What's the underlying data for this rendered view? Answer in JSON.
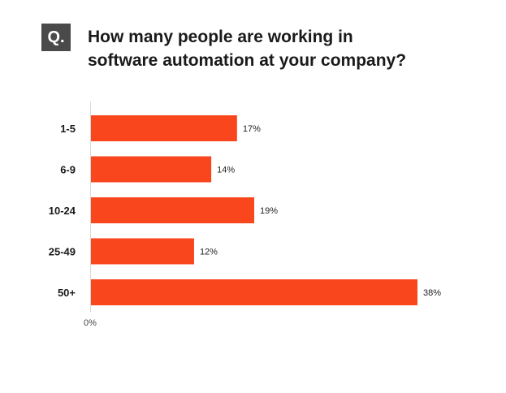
{
  "badge": "Q.",
  "title_lines": [
    "How many people are working in",
    "software automation at your company?"
  ],
  "chart_data": {
    "type": "bar",
    "orientation": "horizontal",
    "categories": [
      "1-5",
      "6-9",
      "10-24",
      "25-49",
      "50+"
    ],
    "values": [
      17,
      14,
      19,
      12,
      38
    ],
    "value_labels": [
      "17%",
      "14%",
      "19%",
      "12%",
      "38%"
    ],
    "x_tick_labels": [
      "0%"
    ],
    "xlim": [
      0,
      38
    ],
    "bar_color": "#f9461c",
    "grid": false,
    "legend": false
  }
}
